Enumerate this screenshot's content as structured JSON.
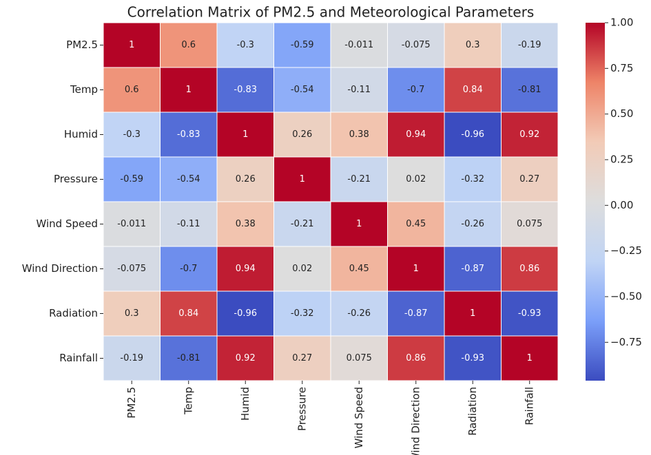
{
  "chart_data": {
    "type": "heatmap",
    "title": "Correlation Matrix of PM2.5 and Meteorological Parameters",
    "x_categories": [
      "PM2.5",
      "Temp",
      "Humid",
      "Pressure",
      "Wind Speed",
      "Wind Direction",
      "Radiation",
      "Rainfall"
    ],
    "y_categories": [
      "PM2.5",
      "Temp",
      "Humid",
      "Pressure",
      "Wind Speed",
      "Wind Direction",
      "Radiation",
      "Rainfall"
    ],
    "values": [
      [
        1,
        0.6,
        -0.3,
        -0.59,
        -0.011,
        -0.075,
        0.3,
        -0.19
      ],
      [
        0.6,
        1,
        -0.83,
        -0.54,
        -0.11,
        -0.7,
        0.84,
        -0.81
      ],
      [
        -0.3,
        -0.83,
        1,
        0.26,
        0.38,
        0.94,
        -0.96,
        0.92
      ],
      [
        -0.59,
        -0.54,
        0.26,
        1,
        -0.21,
        0.02,
        -0.32,
        0.27
      ],
      [
        -0.011,
        -0.11,
        0.38,
        -0.21,
        1,
        0.45,
        -0.26,
        0.075
      ],
      [
        -0.075,
        -0.7,
        0.94,
        0.02,
        0.45,
        1,
        -0.87,
        0.86
      ],
      [
        0.3,
        0.84,
        -0.96,
        -0.32,
        -0.26,
        -0.87,
        1,
        -0.93
      ],
      [
        -0.19,
        -0.81,
        0.92,
        0.27,
        0.075,
        0.86,
        -0.93,
        1
      ]
    ],
    "colormap": [
      "#3b4cc0",
      "#7b9ff9",
      "#c0d4f5",
      "#dddddd",
      "#f2cbb7",
      "#ee8468",
      "#b40426"
    ],
    "clim": [
      -0.96,
      1.0
    ],
    "cticks": [
      {
        "value": -0.75,
        "label": "−0.75"
      },
      {
        "value": -0.5,
        "label": "−0.50"
      },
      {
        "value": -0.25,
        "label": "−0.25"
      },
      {
        "value": 0,
        "label": "0.00"
      },
      {
        "value": 0.25,
        "label": "0.25"
      },
      {
        "value": 0.5,
        "label": "0.50"
      },
      {
        "value": 0.75,
        "label": "0.75"
      },
      {
        "value": 1,
        "label": "1.00"
      }
    ]
  }
}
